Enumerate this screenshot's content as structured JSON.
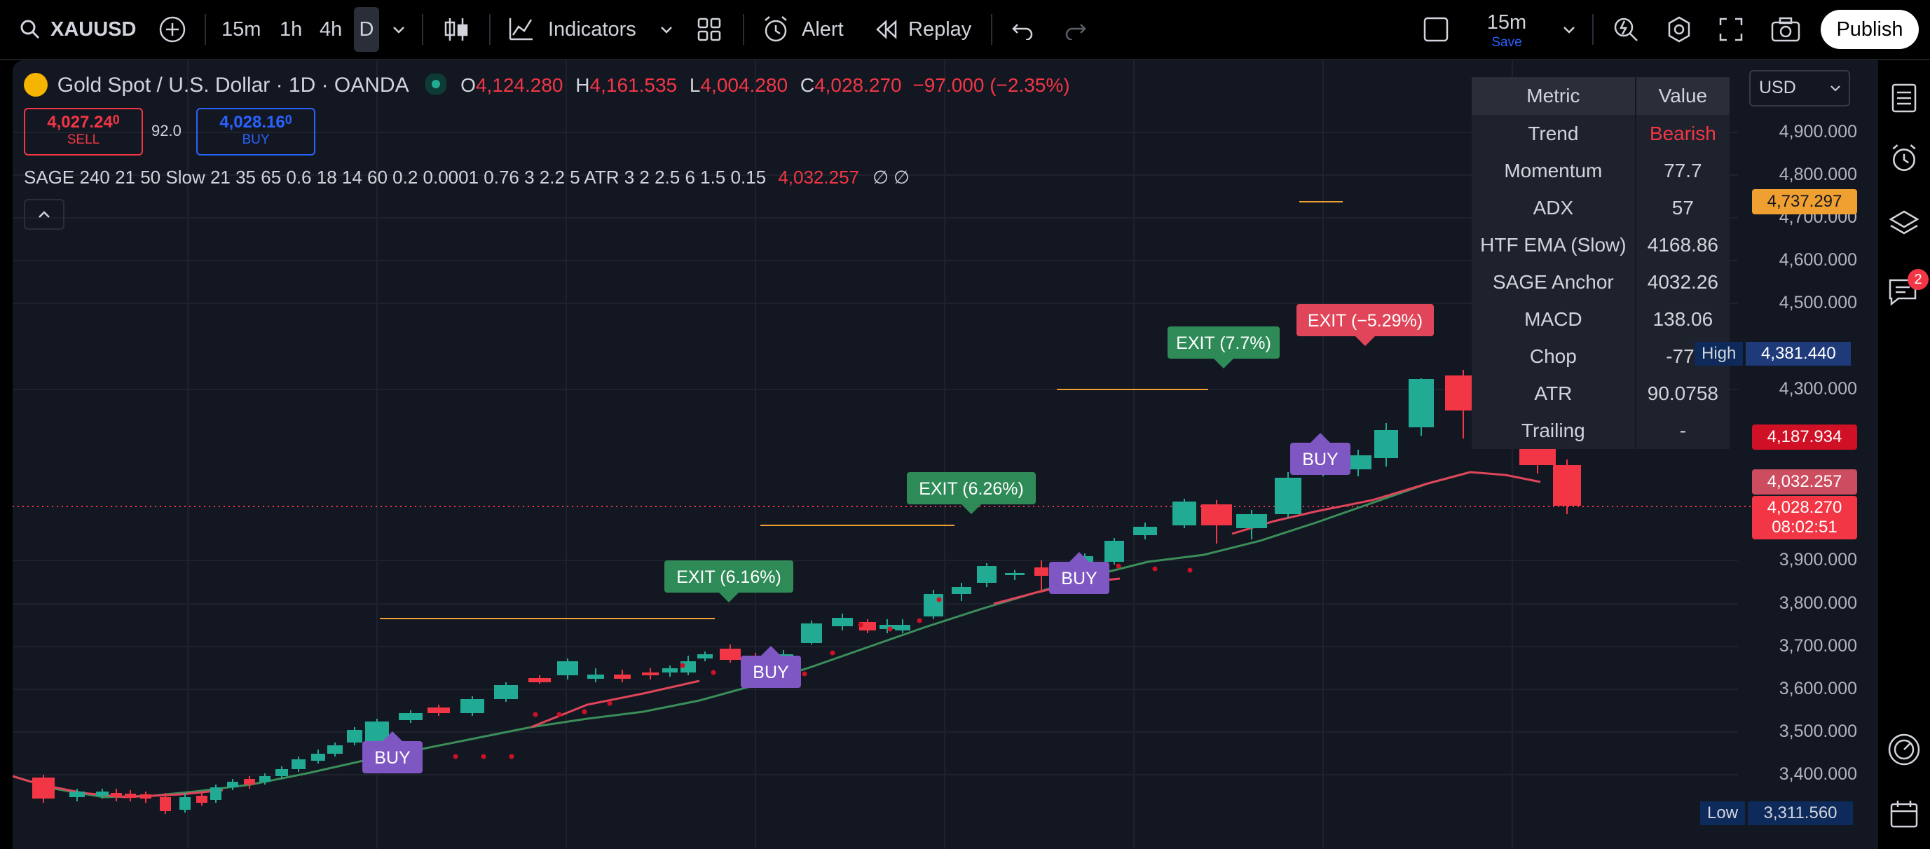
{
  "toolbar": {
    "symbol": "XAUUSD",
    "intervals": [
      "15m",
      "1h",
      "4h",
      "D"
    ],
    "active_interval": "D",
    "indicators_label": "Indicators",
    "alert_label": "Alert",
    "replay_label": "Replay",
    "layout_interval": "15m",
    "save_label": "Save",
    "publish_label": "Publish"
  },
  "legend": {
    "title": "Gold Spot / U.S. Dollar · 1D · OANDA",
    "o_label": "O",
    "o_value": "4,124.280",
    "h_label": "H",
    "h_value": "4,161.535",
    "l_label": "L",
    "l_value": "4,004.280",
    "c_label": "C",
    "c_value": "4,028.270",
    "change": "−97.000 (−2.35%)",
    "sell_price_main": "4,027.24",
    "sell_price_sup": "0",
    "sell_label": "SELL",
    "spread": "92.0",
    "buy_price_main": "4,028.16",
    "buy_price_sup": "0",
    "buy_label": "BUY",
    "indicator_params": "SAGE 240 21 50 Slow 21 35 65 0.6 18 14 60 0.2 0.0001 0.76 3 2.2 5 ATR 3 2 2.5 6 1.5 0.15",
    "indicator_value": "4,032.257",
    "indicator_tail": "∅ ∅"
  },
  "metrics": {
    "header": [
      "Metric",
      "Value"
    ],
    "rows": [
      {
        "metric": "Trend",
        "value": "Bearish"
      },
      {
        "metric": "Momentum",
        "value": "77.7"
      },
      {
        "metric": "ADX",
        "value": "57"
      },
      {
        "metric": "HTF EMA (Slow)",
        "value": "4168.86"
      },
      {
        "metric": "SAGE Anchor",
        "value": "4032.26"
      },
      {
        "metric": "MACD",
        "value": "138.06"
      },
      {
        "metric": "Chop",
        "value": "-77."
      },
      {
        "metric": "ATR",
        "value": "90.0758"
      },
      {
        "metric": "Trailing",
        "value": "-"
      }
    ]
  },
  "price_axis": {
    "currency": "USD",
    "ticks": [
      "4,900.000",
      "4,800.000",
      "4,700.000",
      "4,600.000",
      "4,500.000",
      "4,300.000",
      "3,900.000",
      "3,800.000",
      "3,700.000",
      "3,600.000",
      "3,500.000",
      "3,400.000"
    ],
    "tags": {
      "orange": "4,737.297",
      "high_label": "High",
      "high": "4,381.440",
      "red_level": "4,187.934",
      "sage": "4,032.257",
      "last": "4,028.270",
      "countdown": "08:02:51",
      "low_label": "Low",
      "low": "3,311.560"
    }
  },
  "signals": {
    "buy": "BUY",
    "exits": [
      "EXIT (6.16%)",
      "EXIT (6.26%)",
      "EXIT (7.7%)",
      "EXIT (−5.29%)"
    ]
  },
  "colors": {
    "up": "#22ab94",
    "down": "#f23645",
    "buy_label": "#7e57c2",
    "exit_win": "#2e8b57",
    "exit_loss": "#e0455a",
    "bg": "#131722"
  },
  "notification_count": "2"
}
